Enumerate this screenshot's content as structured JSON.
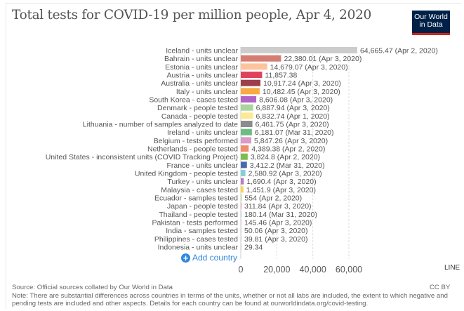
{
  "title": "Total tests for COVID-19 per million people, Apr 4, 2020",
  "logo": {
    "line1": "Our World",
    "line2": "in Data"
  },
  "add_country_label": "Add country",
  "line_button": "LINE",
  "source": "Source: Official sources collated by Our World in Data",
  "note": "Note: There are substantial differences across countries in terms of the units, whether or not all labs are included, the extent to which negative and pending tests are included and other aspects. Details for each country can be found at ourworldindata.org/covid-testing.",
  "license": "CC BY",
  "chart_data": {
    "type": "bar",
    "orientation": "horizontal",
    "title": "Total tests for COVID-19 per million people, Apr 4, 2020",
    "xlim": [
      0,
      65000
    ],
    "xticks": [
      0,
      20000,
      40000,
      60000
    ],
    "xtick_labels": [
      "0",
      "20,000",
      "40,000",
      "60,000"
    ],
    "grid": true,
    "bars": [
      {
        "label": "Iceland - units unclear",
        "value": 64665.47,
        "value_label": "64,665.47 (Apr 2, 2020)",
        "color": "#cccccc"
      },
      {
        "label": "Bahrain - units unclear",
        "value": 22380.01,
        "value_label": "22,380.01 (Apr 3, 2020)",
        "color": "#d67d73"
      },
      {
        "label": "Estonia - units unclear",
        "value": 14679.07,
        "value_label": "14,679.07 (Apr 3, 2020)",
        "color": "#fcc49c"
      },
      {
        "label": "Austria - units unclear",
        "value": 11857.38,
        "value_label": "11,857.38",
        "color": "#e0425c"
      },
      {
        "label": "Australia - units unclear",
        "value": 10917.24,
        "value_label": "10,917.24 (Apr 3, 2020)",
        "color": "#9c3f4b"
      },
      {
        "label": "Italy - units unclear",
        "value": 10482.45,
        "value_label": "10,482.45 (Apr 3, 2020)",
        "color": "#f7ab42"
      },
      {
        "label": "South Korea - cases tested",
        "value": 8606.08,
        "value_label": "8,606.08 (Apr 3, 2020)",
        "color": "#b363c5"
      },
      {
        "label": "Denmark - people tested",
        "value": 6887.94,
        "value_label": "6,887.94 (Apr 3, 2020)",
        "color": "#a9d59c"
      },
      {
        "label": "Canada - people tested",
        "value": 6832.74,
        "value_label": "6,832.74 (Apr 1, 2020)",
        "color": "#fde995"
      },
      {
        "label": "Lithuania - number of samples analyzed to date",
        "value": 6461.75,
        "value_label": "6,461.75 (Apr 3, 2020)",
        "color": "#8c8c8c"
      },
      {
        "label": "Ireland - units unclear",
        "value": 6181.07,
        "value_label": "6,181.07 (Mar 31, 2020)",
        "color": "#6dbd82"
      },
      {
        "label": "Belgium - tests performed",
        "value": 5847.26,
        "value_label": "5,847.26 (Apr 3, 2020)",
        "color": "#d99bc7"
      },
      {
        "label": "Netherlands - people tested",
        "value": 4389.38,
        "value_label": "4,389.38 (Apr 2, 2020)",
        "color": "#f48a6c"
      },
      {
        "label": "United States - inconsistent units (COVID Tracking Project)",
        "value": 3824.8,
        "value_label": "3,824.8 (Apr 2, 2020)",
        "color": "#7dbd4d"
      },
      {
        "label": "France - units unclear",
        "value": 3412.2,
        "value_label": "3,412.2 (Mar 31, 2020)",
        "color": "#4a6aad"
      },
      {
        "label": "United Kingdom - people tested",
        "value": 2580.92,
        "value_label": "2,580.92 (Apr 3, 2020)",
        "color": "#86cfd5"
      },
      {
        "label": "Turkey - units unclear",
        "value": 1690.4,
        "value_label": "1,690.4 (Apr 3, 2020)",
        "color": "#b67ec3"
      },
      {
        "label": "Malaysia - cases tested",
        "value": 1451.9,
        "value_label": "1,451.9 (Apr 3, 2020)",
        "color": "#fdd34a"
      },
      {
        "label": "Ecuador - samples tested",
        "value": 554,
        "value_label": "554 (Apr 2, 2020)",
        "color": "#b3dca0"
      },
      {
        "label": "Japan - people tested",
        "value": 311.84,
        "value_label": "311.84 (Apr 3, 2020)",
        "color": "#e88a8a"
      },
      {
        "label": "Thailand - people tested",
        "value": 180.14,
        "value_label": "180.14 (Mar 31, 2020)",
        "color": "#9ecfd6"
      },
      {
        "label": "Pakistan - tests performed",
        "value": 145.46,
        "value_label": "145.46 (Apr 3, 2020)",
        "color": "#d7bfe2"
      },
      {
        "label": "India - samples tested",
        "value": 50.06,
        "value_label": "50.06 (Apr 3, 2020)",
        "color": "#cccccc"
      },
      {
        "label": "Philippines - cases tested",
        "value": 39.81,
        "value_label": "39.81 (Apr 3, 2020)",
        "color": "#cccccc"
      },
      {
        "label": "Indonesia - units unclear",
        "value": 29.34,
        "value_label": "29.34",
        "color": "#cccccc"
      }
    ]
  }
}
